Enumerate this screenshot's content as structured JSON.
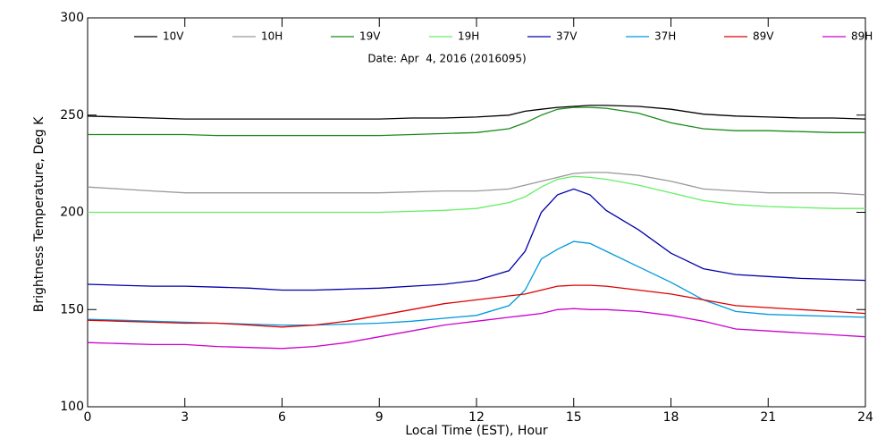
{
  "chart_data": {
    "type": "line",
    "subtitle": "Date: Apr  4, 2016 (2016095)",
    "x_label": "Local Time (EST), Hour",
    "y_label": "Brightness Temperature, Deg K",
    "x": [
      0,
      1,
      2,
      3,
      4,
      5,
      6,
      7,
      8,
      9,
      10,
      11,
      12,
      13,
      13.5,
      14,
      14.5,
      15,
      15.5,
      16,
      17,
      18,
      19,
      20,
      21,
      22,
      23,
      24
    ],
    "xlim": [
      0,
      24
    ],
    "xticks": [
      0,
      3,
      6,
      9,
      12,
      15,
      18,
      21,
      24
    ],
    "ylim": [
      100,
      300
    ],
    "yticks": [
      100,
      150,
      200,
      250,
      300
    ],
    "series": [
      {
        "name": "10V",
        "color": "#000000",
        "values": [
          249.5,
          249,
          248.5,
          248,
          248,
          248,
          248,
          248,
          248,
          248,
          248.5,
          248.5,
          249,
          250,
          252,
          253,
          254,
          254.5,
          255,
          255,
          254.5,
          253,
          250.5,
          249.5,
          249,
          248.5,
          248.5,
          248
        ]
      },
      {
        "name": "10H",
        "color": "#999999",
        "values": [
          213,
          212,
          211,
          210,
          210,
          210,
          210,
          210,
          210,
          210,
          210.5,
          211,
          211,
          212,
          214,
          216,
          218,
          220,
          220.5,
          220.5,
          219,
          216,
          212,
          211,
          210,
          210,
          210,
          209
        ]
      },
      {
        "name": "19V",
        "color": "#1a8a1a",
        "values": [
          240,
          240,
          240,
          240,
          239.5,
          239.5,
          239.5,
          239.5,
          239.5,
          239.5,
          240,
          240.5,
          241,
          243,
          246,
          250,
          253,
          254,
          254,
          253.5,
          251,
          246,
          243,
          242,
          242,
          241.5,
          241,
          241
        ]
      },
      {
        "name": "19H",
        "color": "#66ee66",
        "values": [
          200,
          200,
          200,
          200,
          200,
          200,
          200,
          200,
          200,
          200,
          200.5,
          201,
          202,
          205,
          208,
          213,
          217,
          218.5,
          218,
          217,
          214,
          210,
          206,
          204,
          203,
          202.5,
          202,
          202
        ]
      },
      {
        "name": "37V",
        "color": "#0000aa",
        "values": [
          163,
          162.5,
          162,
          162,
          161.5,
          161,
          160,
          160,
          160.5,
          161,
          162,
          163,
          165,
          170,
          180,
          200,
          209,
          212,
          209,
          201,
          191,
          179,
          171,
          168,
          167,
          166,
          165.5,
          165
        ]
      },
      {
        "name": "37H",
        "color": "#0099dd",
        "values": [
          145,
          144.5,
          144,
          143.5,
          143,
          142.5,
          142,
          142,
          142.5,
          143,
          144,
          145.5,
          147,
          152,
          160,
          176,
          181,
          185,
          184,
          180,
          172,
          164,
          155,
          149,
          147.5,
          147,
          146.5,
          146
        ]
      },
      {
        "name": "89V",
        "color": "#dd0000",
        "values": [
          144.5,
          144,
          143.5,
          143,
          143,
          142,
          141,
          142,
          144,
          147,
          150,
          153,
          155,
          157,
          158,
          160,
          162,
          162.5,
          162.5,
          162,
          160,
          158,
          155,
          152,
          151,
          150,
          149,
          148
        ]
      },
      {
        "name": "89H",
        "color": "#cc00cc",
        "values": [
          133,
          132.5,
          132,
          132,
          131,
          130.5,
          130,
          131,
          133,
          136,
          139,
          142,
          144,
          146,
          147,
          148,
          150,
          150.5,
          150,
          150,
          149,
          147,
          144,
          140,
          139,
          138,
          137,
          136
        ]
      }
    ]
  }
}
